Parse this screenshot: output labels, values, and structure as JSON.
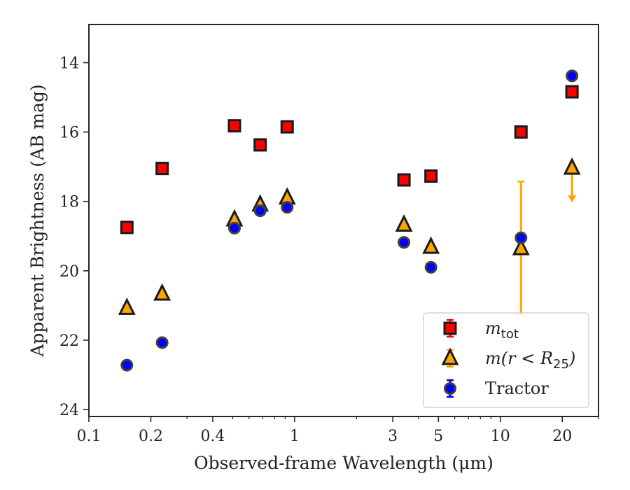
{
  "chart_data": {
    "type": "scatter",
    "title": "",
    "xlabel": "Observed-frame Wavelength (μm)",
    "ylabel": "Apparent Brightness (AB mag)",
    "xscale": "log",
    "xlim": [
      0.1,
      30
    ],
    "ylim": [
      24.2,
      12.9
    ],
    "y_inverted": true,
    "x_ticks": [
      0.1,
      0.2,
      0.4,
      1,
      3,
      5,
      10,
      20
    ],
    "x_tick_labels": [
      "0.1",
      "0.2",
      "0.4",
      "1",
      "3",
      "5",
      "10",
      "20"
    ],
    "y_ticks": [
      14,
      16,
      18,
      20,
      22,
      24
    ],
    "y_tick_labels": [
      "14",
      "16",
      "18",
      "20",
      "22",
      "24"
    ],
    "grid": false,
    "legend_position": "lower-right",
    "series": [
      {
        "name": "m_tot",
        "legend_main": "m",
        "legend_sub": "tot",
        "marker": "square",
        "color": "#ff0000",
        "edge_color": "#1a1a1a",
        "errorbar_color": "#ff0000",
        "points": [
          {
            "x": 0.153,
            "y": 18.75,
            "err": 0.05
          },
          {
            "x": 0.227,
            "y": 17.05,
            "err": 0.05
          },
          {
            "x": 0.51,
            "y": 15.82,
            "err": 0.05
          },
          {
            "x": 0.68,
            "y": 16.37,
            "err": 0.05
          },
          {
            "x": 0.92,
            "y": 15.85,
            "err": 0.05
          },
          {
            "x": 3.4,
            "y": 17.38,
            "err": 0.05
          },
          {
            "x": 4.6,
            "y": 17.27,
            "err": 0.05
          },
          {
            "x": 12.6,
            "y": 16.0,
            "err": 0.05
          },
          {
            "x": 22.3,
            "y": 14.84,
            "err": 0.05
          }
        ]
      },
      {
        "name": "m(r < R_25)",
        "legend_main": "m(r < R",
        "legend_sub": "25",
        "legend_tail": ")",
        "marker": "triangle",
        "color": "#ffa500",
        "edge_color": "#1a1a1a",
        "errorbar_color": "#ffa500",
        "points": [
          {
            "x": 0.153,
            "y": 21.08,
            "err": 0.05
          },
          {
            "x": 0.227,
            "y": 20.67,
            "err": 0.05
          },
          {
            "x": 0.51,
            "y": 18.53,
            "err": 0.05
          },
          {
            "x": 0.68,
            "y": 18.1,
            "err": 0.05
          },
          {
            "x": 0.92,
            "y": 17.9,
            "err": 0.05
          },
          {
            "x": 3.4,
            "y": 18.68,
            "err": 0.05
          },
          {
            "x": 4.6,
            "y": 19.32,
            "err": 0.15
          },
          {
            "x": 12.6,
            "y": 19.36,
            "err_low": 1.93,
            "err_high": 1.9
          },
          {
            "x": 22.3,
            "y": 17.04,
            "upper_limit": true,
            "limit_to": 17.95
          }
        ]
      },
      {
        "name": "Tractor",
        "legend_main": "Tractor",
        "marker": "circle",
        "color": "#0000ff",
        "edge_color": "#404040",
        "errorbar_color": "#0000ff",
        "points": [
          {
            "x": 0.153,
            "y": 22.72,
            "err": 0.05
          },
          {
            "x": 0.227,
            "y": 22.07,
            "err": 0.05
          },
          {
            "x": 0.51,
            "y": 18.77,
            "err": 0.05
          },
          {
            "x": 0.68,
            "y": 18.27,
            "err": 0.05
          },
          {
            "x": 0.92,
            "y": 18.17,
            "err": 0.05
          },
          {
            "x": 3.4,
            "y": 19.18,
            "err": 0.05
          },
          {
            "x": 4.6,
            "y": 19.9,
            "err": 0.05
          },
          {
            "x": 12.6,
            "y": 19.05,
            "err": 0.05
          },
          {
            "x": 22.3,
            "y": 14.38,
            "err": 0.05
          }
        ]
      }
    ]
  }
}
